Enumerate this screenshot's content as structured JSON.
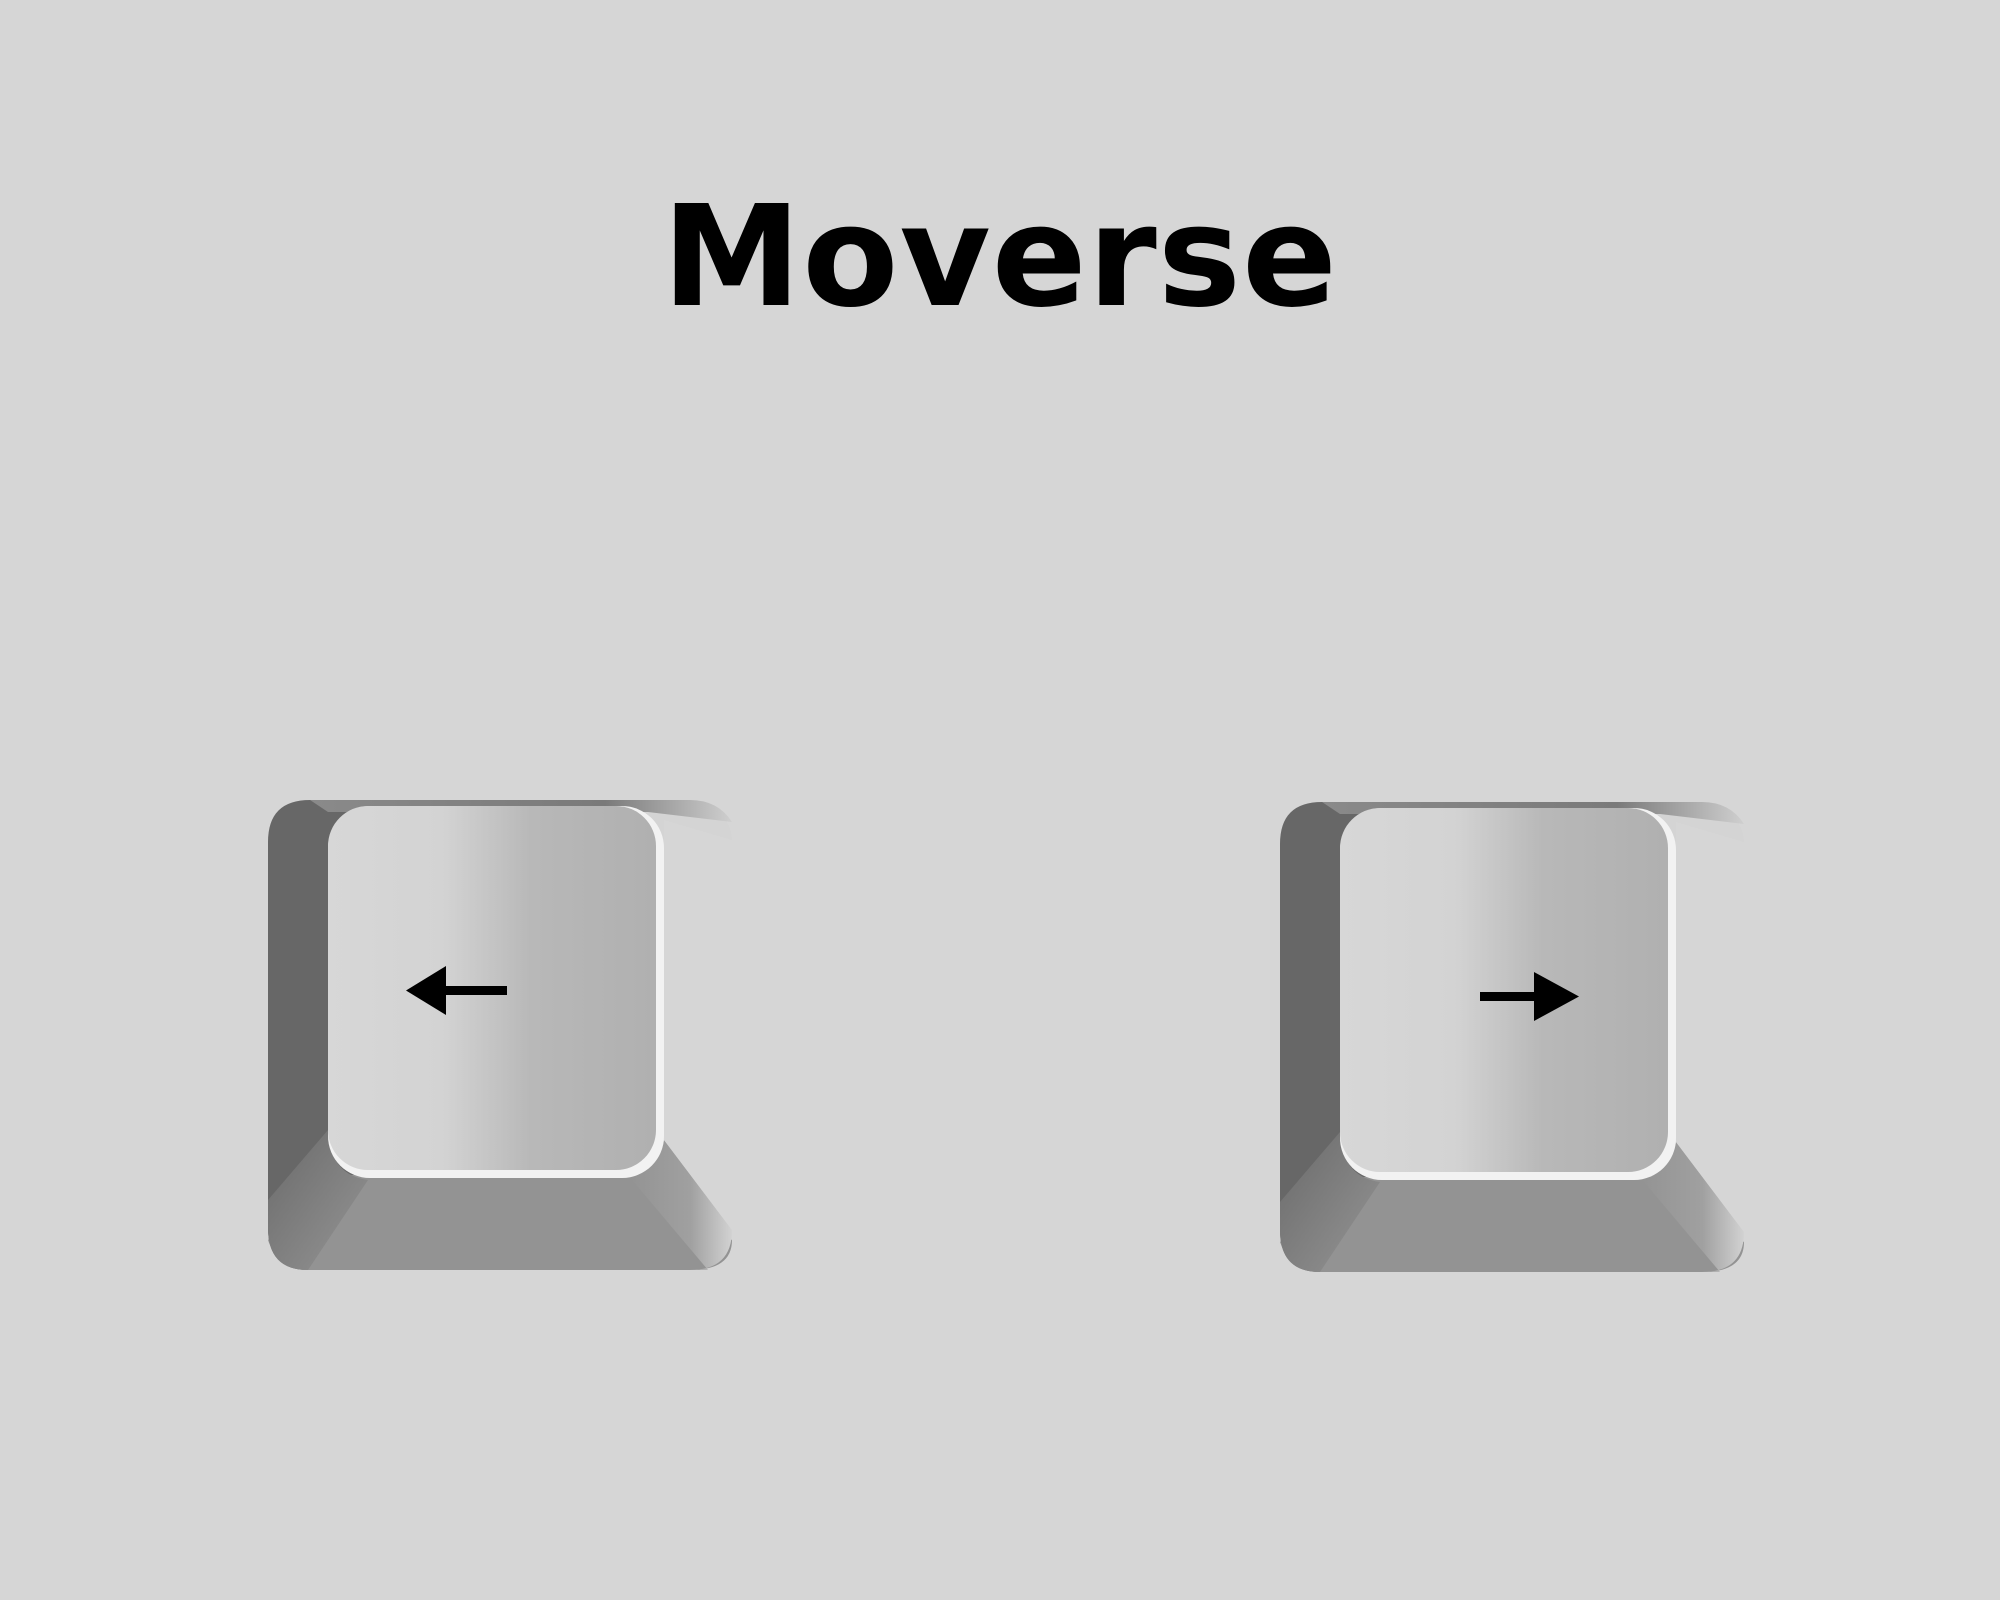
{
  "title": "Moverse",
  "colors": {
    "background": "#d6d6d6",
    "keycap_top_light": "#d8d8d8",
    "keycap_top_dark": "#b2b2b2",
    "keycap_left_side": "#676767",
    "keycap_bottom_side": "#939393",
    "keycap_right_side": "#d4d4d4",
    "arrow": "#000000"
  },
  "keys": [
    {
      "name": "left-arrow-key",
      "icon": "arrow-left-icon"
    },
    {
      "name": "right-arrow-key",
      "icon": "arrow-right-icon"
    }
  ]
}
